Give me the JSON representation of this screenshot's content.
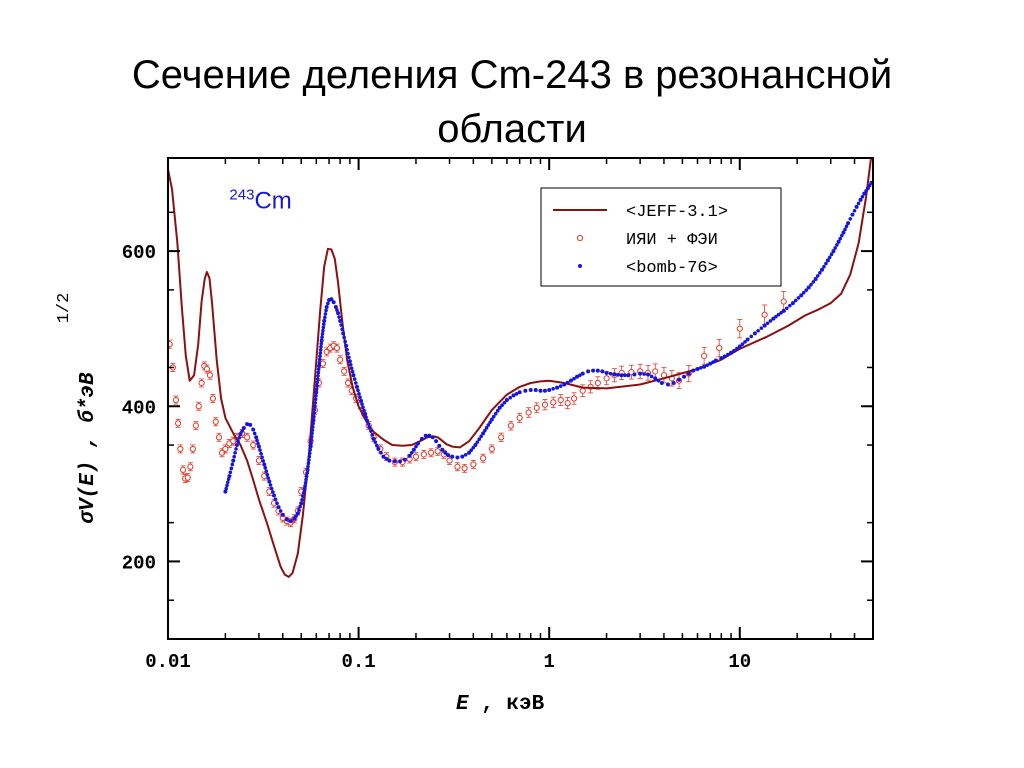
{
  "page": {
    "title_line1": "Сечение деления Cm-243 в резонансной",
    "title_line2": "области"
  },
  "chart_data": {
    "type": "line",
    "xscale": "log",
    "xlim": [
      0.01,
      50
    ],
    "ylim": [
      100,
      720
    ],
    "xlabel_main": "E",
    "xlabel_rest": " , кэВ",
    "ylabel_main": "σV(E) ,  б*эВ",
    "ylabel_exp": "1/2",
    "xticks": [
      {
        "value": 0.01,
        "label": "0.01"
      },
      {
        "value": 0.1,
        "label": "0.1"
      },
      {
        "value": 1,
        "label": "1"
      },
      {
        "value": 10,
        "label": "10"
      }
    ],
    "yticks": [
      {
        "value": 200,
        "label": "200"
      },
      {
        "value": 400,
        "label": "400"
      },
      {
        "value": 600,
        "label": "600"
      }
    ],
    "grid": false,
    "legend_position": "top-right",
    "annotation": {
      "sup": "243",
      "text": "Cm",
      "x": 0.021,
      "y": 655
    },
    "series": [
      {
        "name": "<JEFF-3.1>",
        "style": "line",
        "color": "#8b1010",
        "x": [
          0.01,
          0.0105,
          0.0112,
          0.0118,
          0.0124,
          0.013,
          0.0137,
          0.0144,
          0.015,
          0.0156,
          0.016,
          0.0165,
          0.017,
          0.018,
          0.019,
          0.02,
          0.022,
          0.024,
          0.026,
          0.028,
          0.03,
          0.033,
          0.036,
          0.039,
          0.041,
          0.043,
          0.045,
          0.048,
          0.051,
          0.055,
          0.059,
          0.063,
          0.066,
          0.069,
          0.072,
          0.075,
          0.078,
          0.082,
          0.087,
          0.093,
          0.1,
          0.11,
          0.12,
          0.135,
          0.15,
          0.17,
          0.19,
          0.21,
          0.23,
          0.25,
          0.26,
          0.27,
          0.29,
          0.31,
          0.34,
          0.38,
          0.43,
          0.5,
          0.6,
          0.7,
          0.8,
          0.9,
          1.0,
          1.2,
          1.5,
          2.0,
          3.0,
          4.0,
          6.0,
          8.0,
          10.0,
          14.0,
          18.0,
          22.0,
          26.0,
          30.0,
          34.0,
          38.0,
          42.0,
          46.0,
          50.0
        ],
        "y": [
          705,
          680,
          610,
          530,
          465,
          433,
          440,
          480,
          535,
          565,
          573,
          565,
          535,
          460,
          410,
          385,
          365,
          350,
          330,
          305,
          280,
          250,
          220,
          193,
          183,
          180,
          185,
          210,
          260,
          340,
          435,
          525,
          580,
          603,
          602,
          590,
          560,
          510,
          460,
          425,
          400,
          380,
          367,
          357,
          350,
          349,
          350,
          355,
          360,
          361,
          360,
          357,
          351,
          348,
          347,
          355,
          372,
          395,
          415,
          425,
          430,
          432,
          433,
          430,
          424,
          423,
          428,
          436,
          448,
          460,
          474,
          490,
          504,
          517,
          525,
          533,
          545,
          570,
          610,
          670,
          740
        ]
      },
      {
        "name": "ИЯИ + ФЭИ",
        "style": "points-errorbars",
        "color": "#e03a2a",
        "x": [
          0.0102,
          0.0106,
          0.011,
          0.0113,
          0.0116,
          0.012,
          0.0123,
          0.0127,
          0.0131,
          0.0135,
          0.014,
          0.0145,
          0.015,
          0.0155,
          0.016,
          0.0166,
          0.0172,
          0.0178,
          0.0185,
          0.0192,
          0.02,
          0.021,
          0.022,
          0.023,
          0.0245,
          0.026,
          0.028,
          0.03,
          0.032,
          0.034,
          0.036,
          0.038,
          0.04,
          0.042,
          0.044,
          0.046,
          0.048,
          0.05,
          0.053,
          0.056,
          0.059,
          0.062,
          0.065,
          0.068,
          0.071,
          0.074,
          0.077,
          0.08,
          0.084,
          0.088,
          0.092,
          0.097,
          0.102,
          0.107,
          0.113,
          0.12,
          0.13,
          0.14,
          0.155,
          0.17,
          0.185,
          0.2,
          0.22,
          0.24,
          0.26,
          0.28,
          0.3,
          0.33,
          0.36,
          0.4,
          0.45,
          0.5,
          0.56,
          0.63,
          0.7,
          0.78,
          0.86,
          0.95,
          1.05,
          1.15,
          1.25,
          1.35,
          1.5,
          1.65,
          1.8,
          2.0,
          2.2,
          2.4,
          2.7,
          3.0,
          3.3,
          3.6,
          4.0,
          4.4,
          4.8,
          5.4,
          6.5,
          7.8,
          10.0,
          13.5,
          17.0
        ],
        "y": [
          480,
          450,
          408,
          378,
          345,
          318,
          307,
          308,
          322,
          345,
          375,
          400,
          430,
          452,
          448,
          440,
          410,
          380,
          360,
          340,
          345,
          352,
          355,
          360,
          365,
          360,
          350,
          330,
          310,
          290,
          275,
          265,
          256,
          252,
          250,
          255,
          265,
          290,
          315,
          355,
          395,
          430,
          455,
          470,
          475,
          478,
          475,
          460,
          445,
          430,
          420,
          410,
          402,
          390,
          375,
          360,
          345,
          335,
          328,
          328,
          332,
          335,
          338,
          340,
          342,
          338,
          330,
          322,
          320,
          325,
          333,
          345,
          360,
          375,
          385,
          392,
          398,
          402,
          405,
          408,
          404,
          410,
          420,
          425,
          430,
          436,
          440,
          443,
          444,
          445,
          443,
          445,
          440,
          436,
          433,
          442,
          465,
          475,
          500,
          518,
          535
        ]
      },
      {
        "name": "<bomb-76>",
        "style": "points",
        "color": "#1515e0",
        "x": [
          0.02,
          0.021,
          0.022,
          0.023,
          0.024,
          0.025,
          0.026,
          0.027,
          0.028,
          0.029,
          0.03,
          0.032,
          0.034,
          0.036,
          0.038,
          0.04,
          0.042,
          0.044,
          0.046,
          0.048,
          0.05,
          0.052,
          0.054,
          0.056,
          0.058,
          0.06,
          0.062,
          0.064,
          0.066,
          0.068,
          0.07,
          0.072,
          0.074,
          0.076,
          0.078,
          0.08,
          0.083,
          0.086,
          0.09,
          0.094,
          0.098,
          0.103,
          0.108,
          0.114,
          0.12,
          0.127,
          0.135,
          0.145,
          0.155,
          0.165,
          0.175,
          0.185,
          0.195,
          0.205,
          0.215,
          0.225,
          0.235,
          0.245,
          0.255,
          0.265,
          0.275,
          0.285,
          0.295,
          0.31,
          0.33,
          0.35,
          0.38,
          0.41,
          0.45,
          0.5,
          0.55,
          0.6,
          0.65,
          0.7,
          0.75,
          0.8,
          0.85,
          0.9,
          0.95,
          1.0,
          1.1,
          1.2,
          1.3,
          1.4,
          1.5,
          1.6,
          1.7,
          1.8,
          1.9,
          2.0,
          2.2,
          2.4,
          2.6,
          2.8,
          3.0,
          3.3,
          3.6,
          3.9,
          4.2,
          4.5,
          4.8,
          5.1,
          5.4,
          5.7,
          6.0,
          6.5,
          7.0,
          7.5,
          8.0,
          9.0,
          10.0,
          11.0,
          12.0,
          13.5,
          15.0,
          17.0,
          19.0,
          21.0,
          23.0,
          25.0,
          27.0,
          29.0,
          31.0,
          33.0,
          35.0,
          37.0,
          39.0,
          41.0,
          43.0,
          45.0,
          47.0,
          49.0
        ],
        "y": [
          290,
          310,
          330,
          350,
          364,
          372,
          377,
          376,
          370,
          360,
          348,
          325,
          303,
          285,
          270,
          260,
          254,
          252,
          255,
          262,
          275,
          293,
          318,
          348,
          382,
          418,
          452,
          485,
          510,
          528,
          537,
          538,
          534,
          528,
          520,
          510,
          494,
          478,
          458,
          440,
          425,
          407,
          390,
          373,
          358,
          345,
          335,
          330,
          329,
          329,
          331,
          336,
          344,
          352,
          358,
          362,
          362,
          360,
          355,
          349,
          344,
          340,
          337,
          335,
          334,
          335,
          340,
          350,
          365,
          383,
          398,
          408,
          414,
          418,
          420,
          421,
          421,
          420,
          420,
          421,
          424,
          428,
          433,
          438,
          442,
          445,
          446,
          446,
          445,
          443,
          441,
          440,
          440,
          441,
          442,
          441,
          436,
          430,
          428,
          430,
          434,
          438,
          442,
          446,
          448,
          451,
          455,
          459,
          462,
          469,
          477,
          486,
          494,
          504,
          513,
          523,
          533,
          543,
          553,
          564,
          576,
          588,
          600,
          612,
          624,
          636,
          647,
          657,
          666,
          674,
          681,
          688
        ]
      }
    ]
  }
}
